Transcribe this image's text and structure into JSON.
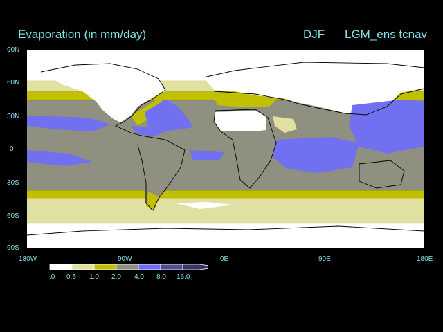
{
  "title": {
    "variable": "Evaporation (in mm/day)",
    "season": "DJF",
    "run": "LGM_ens tcnav"
  },
  "axes": {
    "lat_labels": [
      "90N",
      "60N",
      "30N",
      "0",
      "30S",
      "60S",
      "90S"
    ],
    "lon_labels": [
      "180W",
      "90W",
      "0E",
      "90E",
      "180E"
    ]
  },
  "colorbar": {
    "labels": [
      ".0",
      "0.5",
      "1.0",
      "2.0",
      "4.0",
      "8.0",
      "16.0"
    ],
    "colors": [
      "#ffffff",
      "#e0e0a0",
      "#c0c000",
      "#909080",
      "#7070f0",
      "#505090",
      "#383860"
    ]
  },
  "map": {
    "ocean_bands": [
      {
        "lat_top": 90,
        "lat_bottom": 62,
        "level": 0
      },
      {
        "lat_top": 62,
        "lat_bottom": 52,
        "level": 1
      },
      {
        "lat_top": 52,
        "lat_bottom": 44,
        "level": 2
      },
      {
        "lat_top": 44,
        "lat_bottom": -38,
        "level": 3
      },
      {
        "lat_top": -38,
        "lat_bottom": -45,
        "level": 2
      },
      {
        "lat_top": -45,
        "lat_bottom": -68,
        "level": 1
      },
      {
        "lat_top": -68,
        "lat_bottom": -90,
        "level": 0
      }
    ]
  }
}
